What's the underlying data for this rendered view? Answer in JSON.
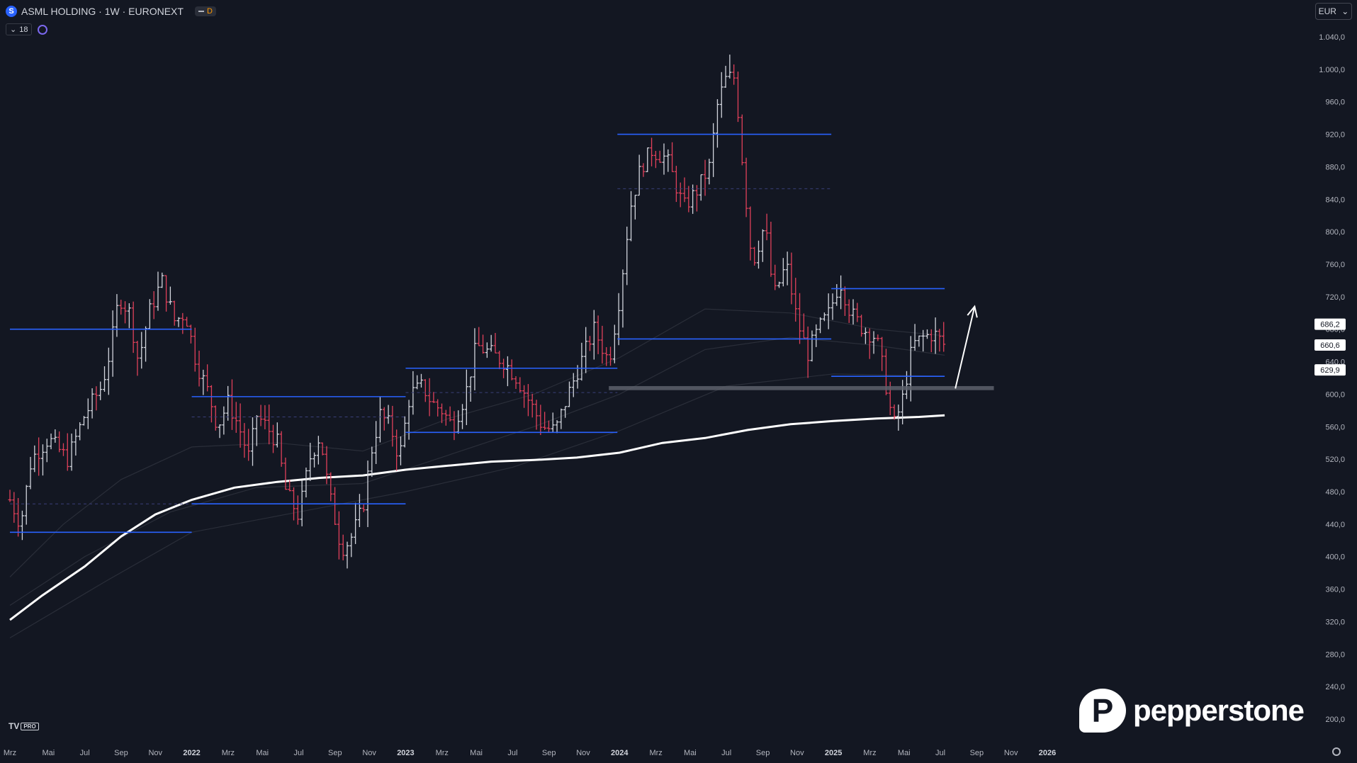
{
  "header": {
    "symbol_icon": "S",
    "title": "ASML HOLDING · 1W · EURONEXT",
    "badge": "D",
    "indicator_count": "18",
    "currency": "EUR"
  },
  "branding": {
    "tv_mark": "TV",
    "tv_pro": "PRO",
    "pepperstone": "pepperstone",
    "pepperstone_mark": "P"
  },
  "colors": {
    "background": "#131722",
    "bull": "#d1d4dc",
    "bear": "#e0405a",
    "level": "#2962ff",
    "ma_main": "#ffffff",
    "ma_faint": "#2a2e39",
    "support_zone": "#5d606b"
  },
  "chart_data": {
    "type": "ohlc",
    "title": "ASML HOLDING · 1W · EURONEXT",
    "ylabel": "",
    "ylim": [
      185,
      1055
    ],
    "xlim": [
      2021.15,
      2026.16
    ],
    "y_ticks": [
      "1.040,0",
      "1.000,0",
      "960,0",
      "920,0",
      "880,0",
      "840,0",
      "800,0",
      "760,0",
      "720,0",
      "680,0",
      "640,0",
      "600,0",
      "560,0",
      "520,0",
      "480,0",
      "440,0",
      "400,0",
      "360,0",
      "320,0",
      "280,0",
      "240,0",
      "200,0"
    ],
    "y_tick_values": [
      1040,
      1000,
      960,
      920,
      880,
      840,
      800,
      760,
      720,
      680,
      640,
      600,
      560,
      520,
      480,
      440,
      400,
      360,
      320,
      280,
      240,
      200
    ],
    "x_ticks": [
      {
        "t": 2021.15,
        "label": "Mrz"
      },
      {
        "t": 2021.33,
        "label": "Mai"
      },
      {
        "t": 2021.5,
        "label": "Jul"
      },
      {
        "t": 2021.67,
        "label": "Sep"
      },
      {
        "t": 2021.83,
        "label": "Nov"
      },
      {
        "t": 2022.0,
        "label": "2022"
      },
      {
        "t": 2022.17,
        "label": "Mrz"
      },
      {
        "t": 2022.33,
        "label": "Mai"
      },
      {
        "t": 2022.5,
        "label": "Jul"
      },
      {
        "t": 2022.67,
        "label": "Sep"
      },
      {
        "t": 2022.83,
        "label": "Nov"
      },
      {
        "t": 2023.0,
        "label": "2023"
      },
      {
        "t": 2023.17,
        "label": "Mrz"
      },
      {
        "t": 2023.33,
        "label": "Mai"
      },
      {
        "t": 2023.5,
        "label": "Jul"
      },
      {
        "t": 2023.67,
        "label": "Sep"
      },
      {
        "t": 2023.83,
        "label": "Nov"
      },
      {
        "t": 2024.0,
        "label": "2024"
      },
      {
        "t": 2024.17,
        "label": "Mrz"
      },
      {
        "t": 2024.33,
        "label": "Mai"
      },
      {
        "t": 2024.5,
        "label": "Jul"
      },
      {
        "t": 2024.67,
        "label": "Sep"
      },
      {
        "t": 2024.83,
        "label": "Nov"
      },
      {
        "t": 2025.0,
        "label": "2025"
      },
      {
        "t": 2025.17,
        "label": "Mrz"
      },
      {
        "t": 2025.33,
        "label": "Mai"
      },
      {
        "t": 2025.5,
        "label": "Jul"
      },
      {
        "t": 2025.67,
        "label": "Sep"
      },
      {
        "t": 2025.83,
        "label": "Nov"
      },
      {
        "t": 2026.0,
        "label": "2026"
      }
    ],
    "price_path": [
      [
        2021.15,
        470
      ],
      [
        2021.2,
        440
      ],
      [
        2021.25,
        520
      ],
      [
        2021.33,
        545
      ],
      [
        2021.42,
        520
      ],
      [
        2021.5,
        575
      ],
      [
        2021.58,
        610
      ],
      [
        2021.62,
        655
      ],
      [
        2021.66,
        720
      ],
      [
        2021.71,
        700
      ],
      [
        2021.75,
        640
      ],
      [
        2021.8,
        700
      ],
      [
        2021.86,
        740
      ],
      [
        2021.92,
        690
      ],
      [
        2021.97,
        700
      ],
      [
        2022.02,
        640
      ],
      [
        2022.08,
        600
      ],
      [
        2022.12,
        560
      ],
      [
        2022.17,
        590
      ],
      [
        2022.22,
        560
      ],
      [
        2022.27,
        520
      ],
      [
        2022.3,
        575
      ],
      [
        2022.35,
        560
      ],
      [
        2022.4,
        540
      ],
      [
        2022.44,
        480
      ],
      [
        2022.5,
        450
      ],
      [
        2022.55,
        520
      ],
      [
        2022.6,
        550
      ],
      [
        2022.64,
        480
      ],
      [
        2022.7,
        410
      ],
      [
        2022.74,
        420
      ],
      [
        2022.8,
        460
      ],
      [
        2022.84,
        530
      ],
      [
        2022.88,
        575
      ],
      [
        2022.93,
        560
      ],
      [
        2022.97,
        520
      ],
      [
        2023.02,
        600
      ],
      [
        2023.08,
        610
      ],
      [
        2023.12,
        590
      ],
      [
        2023.17,
        580
      ],
      [
        2023.22,
        560
      ],
      [
        2023.28,
        600
      ],
      [
        2023.33,
        660
      ],
      [
        2023.4,
        650
      ],
      [
        2023.46,
        640
      ],
      [
        2023.52,
        620
      ],
      [
        2023.58,
        590
      ],
      [
        2023.64,
        560
      ],
      [
        2023.7,
        555
      ],
      [
        2023.76,
        600
      ],
      [
        2023.82,
        640
      ],
      [
        2023.88,
        680
      ],
      [
        2023.95,
        640
      ],
      [
        2024.0,
        720
      ],
      [
        2024.05,
        830
      ],
      [
        2024.1,
        880
      ],
      [
        2024.15,
        900
      ],
      [
        2024.22,
        890
      ],
      [
        2024.3,
        830
      ],
      [
        2024.36,
        850
      ],
      [
        2024.42,
        880
      ],
      [
        2024.46,
        960
      ],
      [
        2024.5,
        990
      ],
      [
        2024.54,
        990
      ],
      [
        2024.58,
        870
      ],
      [
        2024.62,
        760
      ],
      [
        2024.68,
        810
      ],
      [
        2024.72,
        720
      ],
      [
        2024.78,
        760
      ],
      [
        2024.83,
        690
      ],
      [
        2024.88,
        650
      ],
      [
        2024.93,
        680
      ],
      [
        2024.98,
        700
      ],
      [
        2025.03,
        740
      ],
      [
        2025.08,
        700
      ],
      [
        2025.14,
        680
      ],
      [
        2025.2,
        670
      ],
      [
        2025.24,
        620
      ],
      [
        2025.28,
        560
      ],
      [
        2025.32,
        590
      ],
      [
        2025.37,
        660
      ],
      [
        2025.42,
        670
      ],
      [
        2025.47,
        675
      ],
      [
        2025.52,
        660
      ]
    ],
    "ma_main": [
      [
        2021.15,
        322
      ],
      [
        2021.3,
        352
      ],
      [
        2021.5,
        388
      ],
      [
        2021.67,
        425
      ],
      [
        2021.83,
        452
      ],
      [
        2022.0,
        470
      ],
      [
        2022.2,
        485
      ],
      [
        2022.4,
        492
      ],
      [
        2022.6,
        497
      ],
      [
        2022.8,
        500
      ],
      [
        2023.0,
        507
      ],
      [
        2023.2,
        512
      ],
      [
        2023.4,
        517
      ],
      [
        2023.6,
        519
      ],
      [
        2023.8,
        522
      ],
      [
        2024.0,
        528
      ],
      [
        2024.2,
        540
      ],
      [
        2024.4,
        546
      ],
      [
        2024.6,
        556
      ],
      [
        2024.8,
        563
      ],
      [
        2025.0,
        567
      ],
      [
        2025.2,
        570
      ],
      [
        2025.4,
        572
      ],
      [
        2025.52,
        574
      ]
    ],
    "ma_faint_1": [
      [
        2021.15,
        375
      ],
      [
        2021.4,
        440
      ],
      [
        2021.67,
        495
      ],
      [
        2022.0,
        535
      ],
      [
        2022.4,
        540
      ],
      [
        2022.8,
        530
      ],
      [
        2023.2,
        570
      ],
      [
        2023.6,
        600
      ],
      [
        2024.0,
        645
      ],
      [
        2024.4,
        705
      ],
      [
        2024.8,
        700
      ],
      [
        2025.2,
        680
      ],
      [
        2025.52,
        672
      ]
    ],
    "ma_faint_2": [
      [
        2021.15,
        340
      ],
      [
        2021.5,
        400
      ],
      [
        2021.9,
        455
      ],
      [
        2022.3,
        485
      ],
      [
        2022.8,
        490
      ],
      [
        2023.2,
        525
      ],
      [
        2023.6,
        560
      ],
      [
        2024.0,
        600
      ],
      [
        2024.4,
        655
      ],
      [
        2024.8,
        670
      ],
      [
        2025.2,
        660
      ],
      [
        2025.52,
        648
      ]
    ],
    "ma_faint_3": [
      [
        2021.15,
        300
      ],
      [
        2021.6,
        370
      ],
      [
        2022.0,
        430
      ],
      [
        2022.5,
        455
      ],
      [
        2023.0,
        480
      ],
      [
        2023.5,
        510
      ],
      [
        2024.0,
        555
      ],
      [
        2024.5,
        610
      ],
      [
        2025.0,
        625
      ],
      [
        2025.52,
        622
      ]
    ],
    "horizontal_levels": [
      {
        "t1": 2021.15,
        "t2": 2022.0,
        "price": 680,
        "style": "solid"
      },
      {
        "t1": 2021.15,
        "t2": 2022.0,
        "price": 430,
        "style": "solid"
      },
      {
        "t1": 2021.15,
        "t2": 2022.0,
        "price": 465,
        "style": "dashed"
      },
      {
        "t1": 2022.0,
        "t2": 2023.0,
        "price": 597,
        "style": "solid"
      },
      {
        "t1": 2022.0,
        "t2": 2023.0,
        "price": 465,
        "style": "solid"
      },
      {
        "t1": 2022.0,
        "t2": 2023.0,
        "price": 572,
        "style": "dashed"
      },
      {
        "t1": 2023.0,
        "t2": 2023.99,
        "price": 632,
        "style": "solid"
      },
      {
        "t1": 2023.0,
        "t2": 2023.99,
        "price": 553,
        "style": "solid"
      },
      {
        "t1": 2023.0,
        "t2": 2023.99,
        "price": 602,
        "style": "dashed"
      },
      {
        "t1": 2023.99,
        "t2": 2024.99,
        "price": 920,
        "style": "solid"
      },
      {
        "t1": 2023.99,
        "t2": 2024.99,
        "price": 668,
        "style": "solid"
      },
      {
        "t1": 2023.99,
        "t2": 2024.99,
        "price": 853,
        "style": "dashed"
      },
      {
        "t1": 2024.99,
        "t2": 2025.52,
        "price": 730,
        "style": "solid"
      },
      {
        "t1": 2024.99,
        "t2": 2025.52,
        "price": 622,
        "style": "solid"
      }
    ],
    "support_zone": {
      "t1": 2023.95,
      "t2": 2025.75,
      "low": 605,
      "high": 610
    },
    "arrow": {
      "t1": 2025.57,
      "p1": 607,
      "t2": 2025.66,
      "p2": 708
    },
    "price_labels": [
      {
        "price": 686.2,
        "label": "686,2"
      },
      {
        "price": 660.6,
        "label": "660,6"
      },
      {
        "price": 629.9,
        "label": "629,9"
      }
    ]
  }
}
